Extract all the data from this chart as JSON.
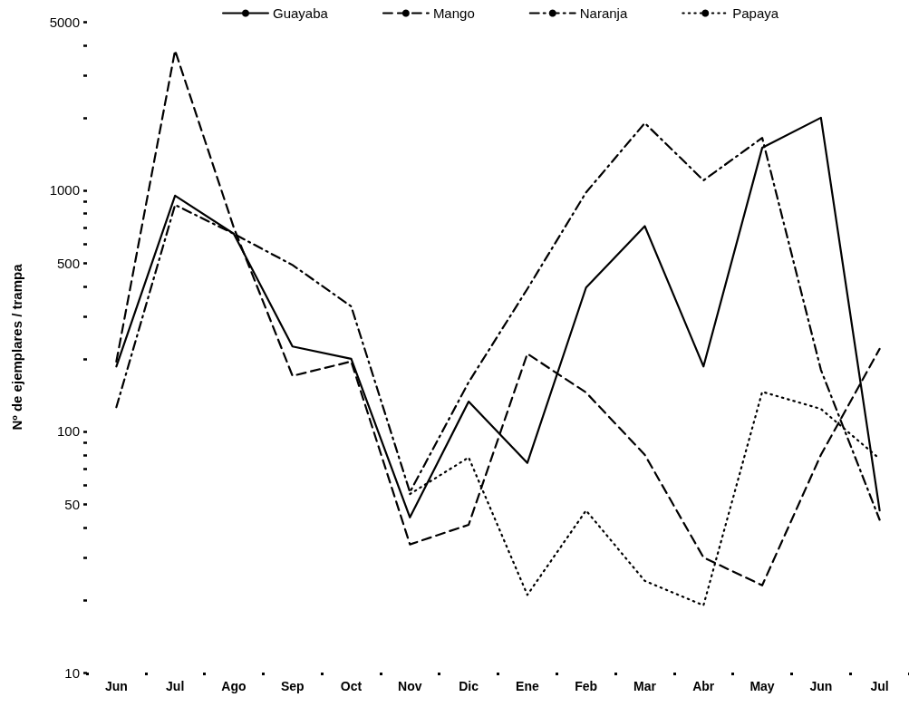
{
  "chart_data": {
    "type": "line",
    "ylabel": "Nº de ejemplares / trampa",
    "categories": [
      "Jun",
      "Jul",
      "Ago",
      "Sep",
      "Oct",
      "Nov",
      "Dic",
      "Ene",
      "Feb",
      "Mar",
      "Abr",
      "May",
      "Jun",
      "Jul"
    ],
    "series": [
      {
        "name": "Guayaba",
        "color": "#000000",
        "line_style": "solid",
        "values": [
          186,
          950,
          660,
          225,
          200,
          44,
          133,
          74,
          395,
          710,
          186,
          1500,
          2000,
          47
        ]
      },
      {
        "name": "Mango",
        "color": "#000000",
        "line_style": "dashed",
        "values": [
          195,
          3800,
          700,
          170,
          195,
          34,
          41,
          210,
          145,
          80,
          30,
          23,
          80,
          220
        ]
      },
      {
        "name": "Naranja",
        "color": "#000000",
        "line_style": "dashdot",
        "values": [
          126,
          870,
          660,
          490,
          330,
          56,
          160,
          390,
          980,
          1900,
          1100,
          1650,
          180,
          43
        ]
      },
      {
        "name": "Papaya",
        "color": "#000000",
        "line_style": "dotted",
        "values": [
          null,
          null,
          null,
          null,
          null,
          55,
          78,
          21,
          47,
          24,
          19,
          146,
          124,
          77
        ]
      }
    ],
    "log": "y",
    "ylim": [
      10,
      5000
    ],
    "yticks": [
      10,
      {
        "value": 20,
        "label": null
      },
      {
        "value": 30,
        "label": null
      },
      {
        "value": 40,
        "label": null
      },
      50,
      {
        "value": 60,
        "label": null
      },
      {
        "value": 70,
        "label": null
      },
      {
        "value": 80,
        "label": null
      },
      {
        "value": 90,
        "label": null
      },
      100,
      {
        "value": 200,
        "label": null
      },
      {
        "value": 300,
        "label": null
      },
      {
        "value": 400,
        "label": null
      },
      500,
      {
        "value": 600,
        "label": null
      },
      {
        "value": 700,
        "label": null
      },
      {
        "value": 800,
        "label": null
      },
      {
        "value": 900,
        "label": null
      },
      1000,
      {
        "value": 2000,
        "label": null
      },
      {
        "value": 3000,
        "label": null
      },
      {
        "value": 4000,
        "label": null
      },
      5000
    ],
    "marker": "none",
    "grid": false,
    "legend": "top"
  }
}
